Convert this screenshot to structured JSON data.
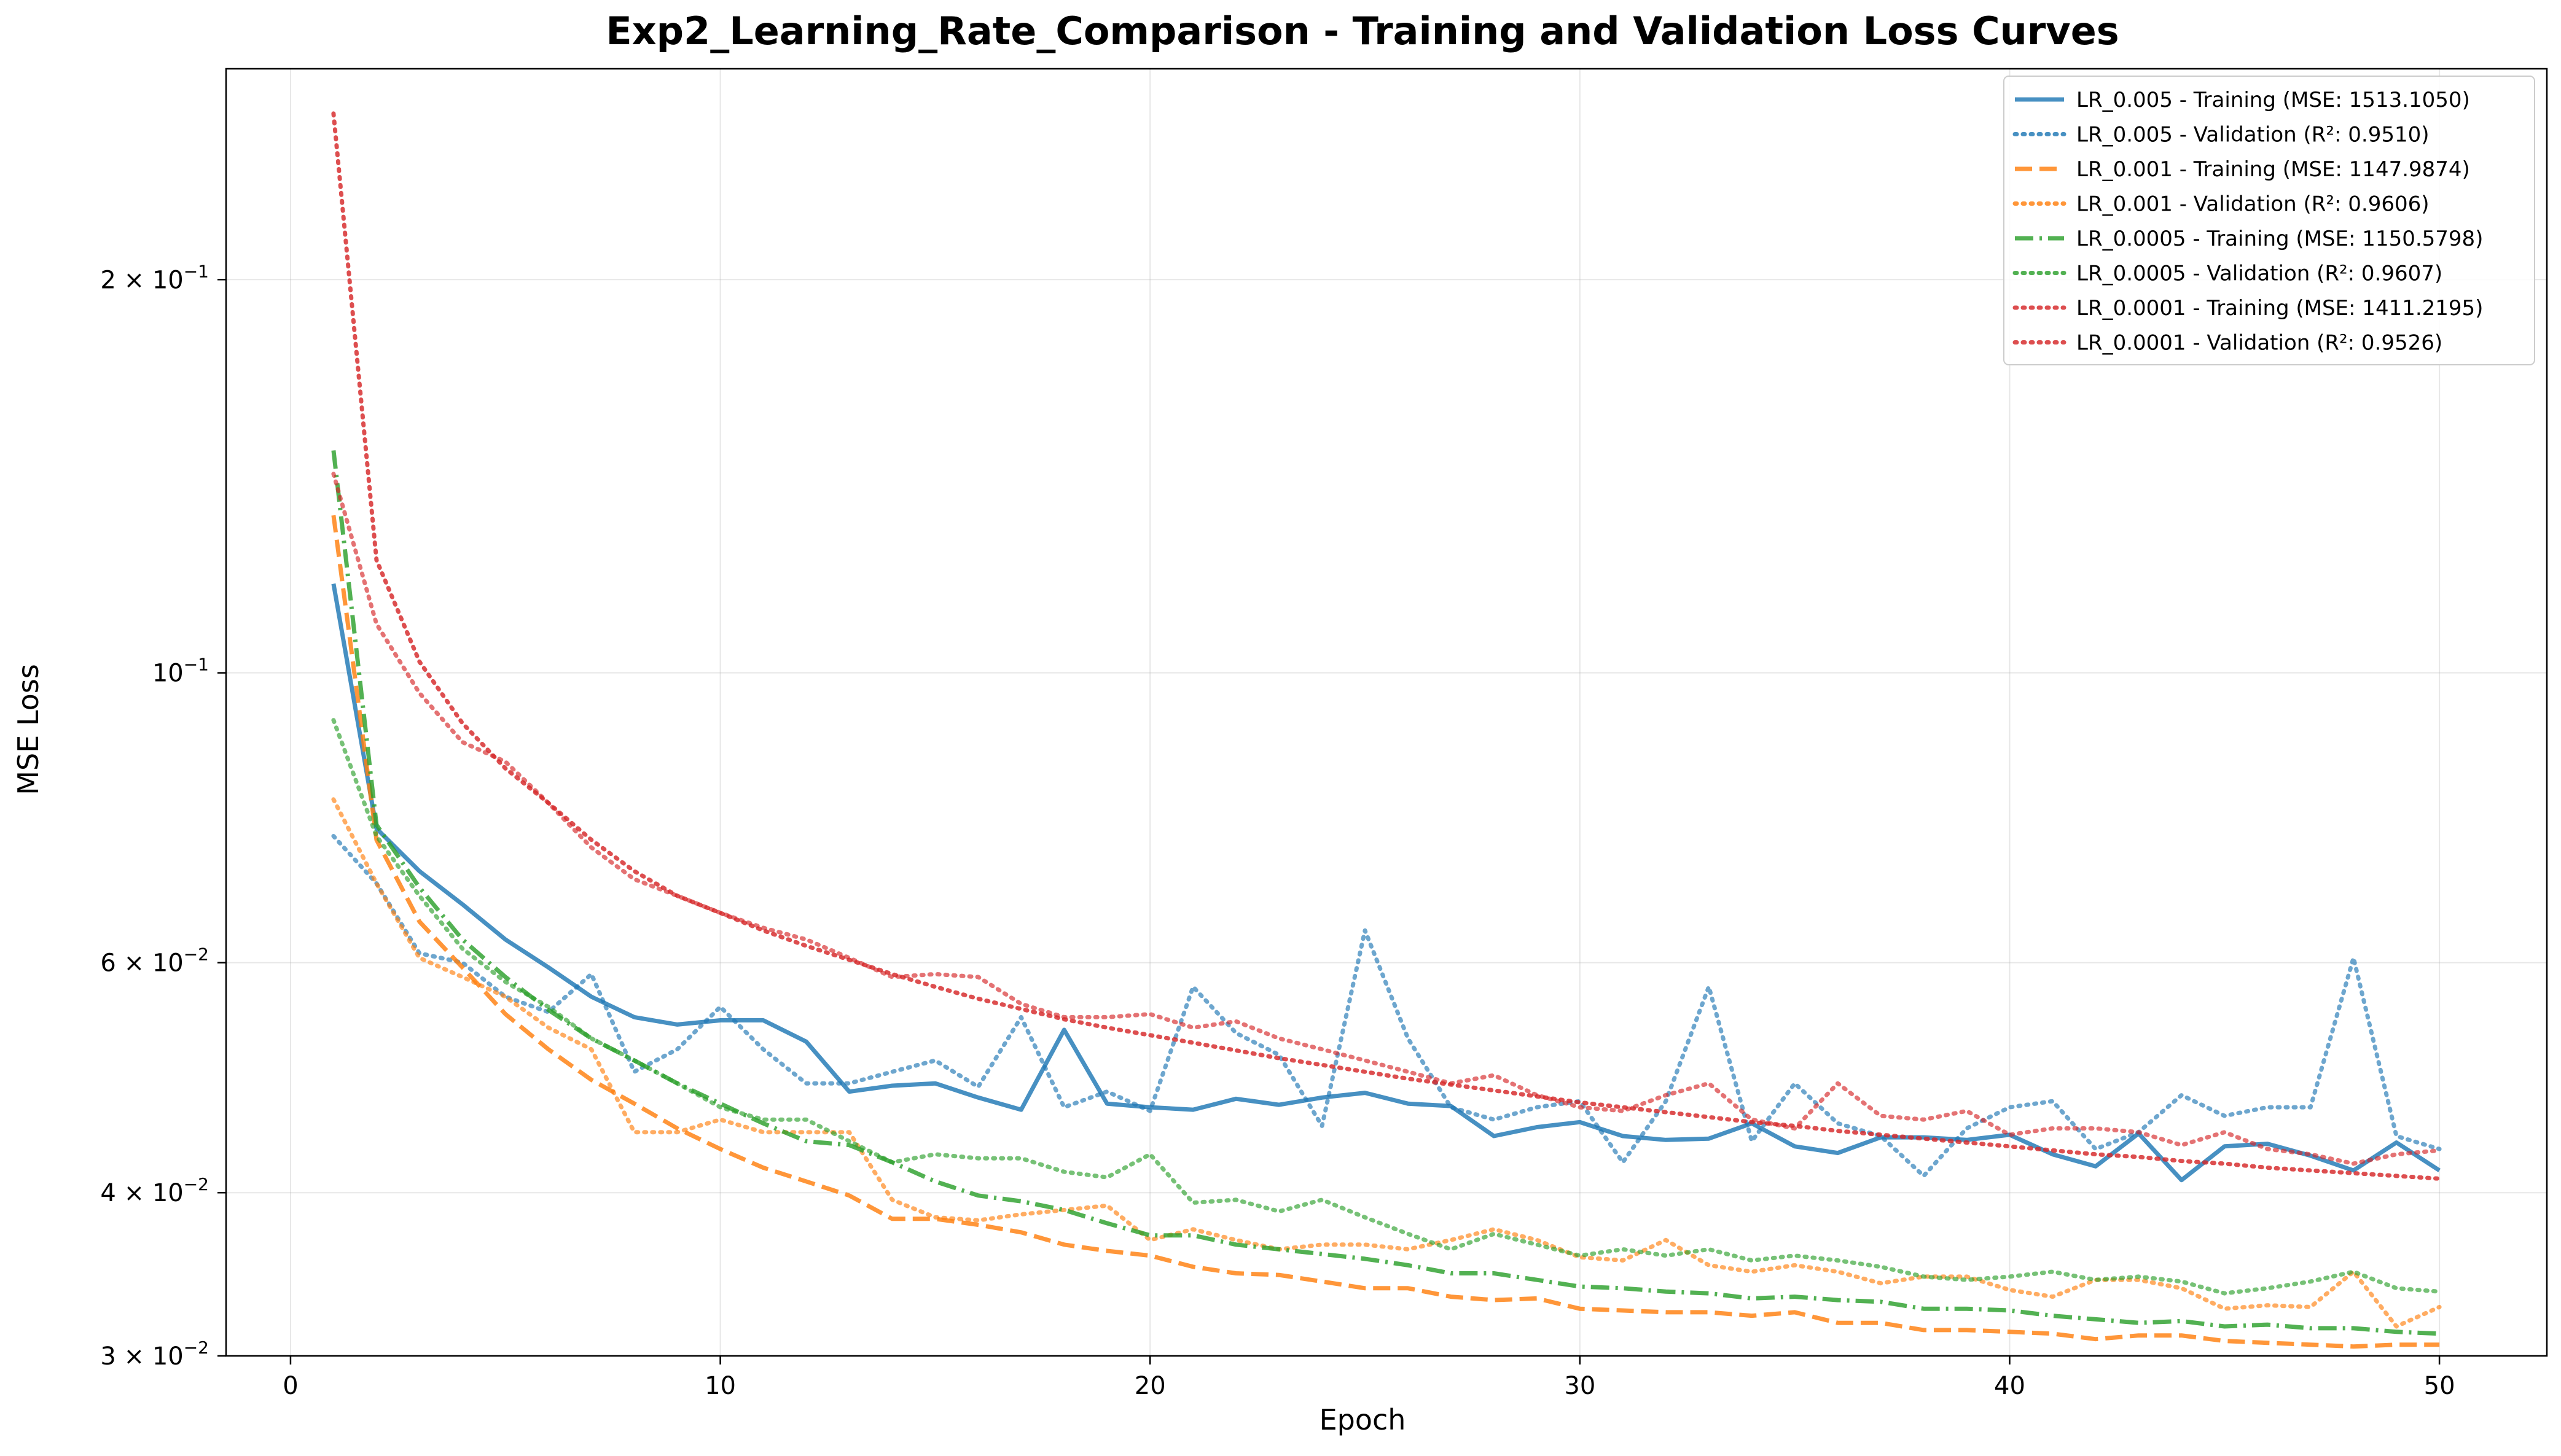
{
  "chart_data": {
    "type": "line",
    "title": "Exp2_Learning_Rate_Comparison - Training and Validation Loss Curves",
    "xlabel": "Epoch",
    "ylabel": "MSE Loss",
    "yscale": "log",
    "xlim": [
      -1.5,
      52.5
    ],
    "ylim": [
      0.03,
      0.29
    ],
    "grid": true,
    "legend_position": "top-right",
    "x_ticks": [
      {
        "value": 0,
        "label": "0"
      },
      {
        "value": 10,
        "label": "10"
      },
      {
        "value": 20,
        "label": "20"
      },
      {
        "value": 30,
        "label": "30"
      },
      {
        "value": 40,
        "label": "40"
      },
      {
        "value": 50,
        "label": "50"
      }
    ],
    "y_ticks": [
      {
        "value": 0.03,
        "mant": "3 × 10",
        "exp": "−2"
      },
      {
        "value": 0.04,
        "mant": "4 × 10",
        "exp": "−2"
      },
      {
        "value": 0.06,
        "mant": "6 × 10",
        "exp": "−2"
      },
      {
        "value": 0.1,
        "mant": "10",
        "exp": "−1"
      },
      {
        "value": 0.2,
        "mant": "2 × 10",
        "exp": "−1"
      }
    ],
    "series": [
      {
        "name": "LR_0.005 - Training (MSE: 1513.1050)",
        "color": "#1f77b4",
        "dash": "solid",
        "values": [
          0.117,
          0.076,
          0.0705,
          0.0665,
          0.0625,
          0.0595,
          0.0565,
          0.0545,
          0.0538,
          0.0542,
          0.0542,
          0.0522,
          0.0478,
          0.0483,
          0.0485,
          0.0473,
          0.0463,
          0.0533,
          0.0468,
          0.0465,
          0.0463,
          0.0472,
          0.0467,
          0.0473,
          0.0477,
          0.0468,
          0.0466,
          0.0442,
          0.0449,
          0.0453,
          0.0442,
          0.0439,
          0.044,
          0.0452,
          0.0434,
          0.0429,
          0.0441,
          0.0441,
          0.0439,
          0.0443,
          0.0428,
          0.0419,
          0.0444,
          0.0409,
          0.0434,
          0.0436,
          0.0427,
          0.0416,
          0.0437,
          0.0416
        ]
      },
      {
        "name": "LR_0.005 - Validation (R²: 0.9510)",
        "color": "#1f77b4",
        "dash": "dotted",
        "values": [
          0.075,
          0.069,
          0.061,
          0.06,
          0.0565,
          0.055,
          0.0588,
          0.0495,
          0.0515,
          0.0555,
          0.0515,
          0.0485,
          0.0485,
          0.0495,
          0.0505,
          0.0482,
          0.0545,
          0.0465,
          0.0478,
          0.0462,
          0.0575,
          0.053,
          0.051,
          0.045,
          0.0635,
          0.0525,
          0.0465,
          0.0455,
          0.0465,
          0.047,
          0.0422,
          0.047,
          0.0575,
          0.0438,
          0.0485,
          0.0452,
          0.0442,
          0.0412,
          0.0448,
          0.0465,
          0.047,
          0.0432,
          0.0445,
          0.0475,
          0.0458,
          0.0465,
          0.0465,
          0.0605,
          0.0442,
          0.0432
        ]
      },
      {
        "name": "LR_0.001 - Training (MSE: 1147.9874)",
        "color": "#ff7f0e",
        "dash": "dashed",
        "values": [
          0.132,
          0.0745,
          0.0645,
          0.0595,
          0.0548,
          0.0515,
          0.0488,
          0.0468,
          0.0448,
          0.0432,
          0.0418,
          0.0408,
          0.0398,
          0.0382,
          0.0382,
          0.0378,
          0.0373,
          0.0365,
          0.0361,
          0.0358,
          0.0351,
          0.0347,
          0.0346,
          0.0342,
          0.0338,
          0.0338,
          0.0333,
          0.0331,
          0.0332,
          0.0326,
          0.0325,
          0.0324,
          0.0324,
          0.0322,
          0.0324,
          0.0318,
          0.0318,
          0.0314,
          0.0314,
          0.0313,
          0.0312,
          0.0309,
          0.0311,
          0.0311,
          0.0308,
          0.0307,
          0.0306,
          0.0305,
          0.0306,
          0.0306
        ]
      },
      {
        "name": "LR_0.001 - Validation (R²: 0.9606)",
        "color": "#ff7f0e",
        "dash": "dotted",
        "values": [
          0.08,
          0.069,
          0.0605,
          0.0585,
          0.0565,
          0.0535,
          0.0515,
          0.0445,
          0.0445,
          0.0455,
          0.0445,
          0.0445,
          0.0445,
          0.0395,
          0.0383,
          0.0381,
          0.0385,
          0.0388,
          0.0391,
          0.0368,
          0.0375,
          0.0368,
          0.0362,
          0.0365,
          0.0365,
          0.0362,
          0.0368,
          0.0375,
          0.0368,
          0.0357,
          0.0355,
          0.0368,
          0.0352,
          0.0348,
          0.0352,
          0.0348,
          0.0341,
          0.0345,
          0.0345,
          0.0337,
          0.0333,
          0.0343,
          0.0343,
          0.0338,
          0.0326,
          0.0328,
          0.0327,
          0.0348,
          0.0316,
          0.0327
        ]
      },
      {
        "name": "LR_0.0005 - Training (MSE: 1150.5798)",
        "color": "#2ca02c",
        "dash": "dashdot",
        "values": [
          0.148,
          0.0765,
          0.0685,
          0.0625,
          0.0585,
          0.0552,
          0.0525,
          0.0505,
          0.0485,
          0.0468,
          0.0452,
          0.0438,
          0.0435,
          0.0422,
          0.0408,
          0.0398,
          0.0394,
          0.0388,
          0.0379,
          0.0371,
          0.0371,
          0.0365,
          0.0362,
          0.0359,
          0.0356,
          0.0352,
          0.0347,
          0.0347,
          0.0343,
          0.0339,
          0.0338,
          0.0336,
          0.0335,
          0.0332,
          0.0333,
          0.0331,
          0.033,
          0.0326,
          0.0326,
          0.0325,
          0.0322,
          0.032,
          0.0318,
          0.0319,
          0.0316,
          0.0317,
          0.0315,
          0.0315,
          0.0313,
          0.0312
        ]
      },
      {
        "name": "LR_0.0005 - Validation (R²: 0.9607)",
        "color": "#2ca02c",
        "dash": "dotted",
        "values": [
          0.092,
          0.075,
          0.0675,
          0.0615,
          0.058,
          0.0555,
          0.0525,
          0.0505,
          0.0485,
          0.0465,
          0.0455,
          0.0455,
          0.0438,
          0.0422,
          0.0428,
          0.0425,
          0.0425,
          0.0415,
          0.0411,
          0.0428,
          0.0393,
          0.0395,
          0.0387,
          0.0395,
          0.0383,
          0.0372,
          0.0362,
          0.0372,
          0.0365,
          0.0358,
          0.0362,
          0.0358,
          0.0362,
          0.0355,
          0.0358,
          0.0355,
          0.0351,
          0.0345,
          0.0343,
          0.0345,
          0.0348,
          0.0343,
          0.0345,
          0.0342,
          0.0335,
          0.0338,
          0.0342,
          0.0348,
          0.0338,
          0.0336
        ]
      },
      {
        "name": "LR_0.0001 - Training (MSE: 1411.2195)",
        "color": "#d62728",
        "dash": "dotted",
        "values": [
          0.268,
          0.122,
          0.102,
          0.0915,
          0.0845,
          0.0795,
          0.0745,
          0.0705,
          0.0675,
          0.0655,
          0.0635,
          0.0618,
          0.0603,
          0.0588,
          0.0575,
          0.0563,
          0.0553,
          0.0543,
          0.0535,
          0.0528,
          0.0521,
          0.0514,
          0.0507,
          0.0501,
          0.0495,
          0.0489,
          0.0484,
          0.0479,
          0.0474,
          0.0469,
          0.0465,
          0.0461,
          0.0457,
          0.0453,
          0.045,
          0.0446,
          0.0443,
          0.044,
          0.0437,
          0.0434,
          0.0431,
          0.0428,
          0.0426,
          0.0423,
          0.0421,
          0.0418,
          0.0416,
          0.0414,
          0.0412,
          0.041
        ]
      },
      {
        "name": "LR_0.0001 - Validation (R²: 0.9526)",
        "color": "#d62728",
        "dash": "dotted",
        "values": [
          0.142,
          0.109,
          0.0965,
          0.0885,
          0.0855,
          0.0795,
          0.0735,
          0.0695,
          0.0675,
          0.0655,
          0.0638,
          0.0625,
          0.0605,
          0.0585,
          0.0588,
          0.0585,
          0.0558,
          0.0545,
          0.0545,
          0.0548,
          0.0535,
          0.0541,
          0.0525,
          0.0515,
          0.0505,
          0.0495,
          0.0485,
          0.0492,
          0.0475,
          0.0465,
          0.0462,
          0.0475,
          0.0485,
          0.0455,
          0.0448,
          0.0485,
          0.0458,
          0.0455,
          0.0462,
          0.0443,
          0.0448,
          0.0448,
          0.0445,
          0.0435,
          0.0445,
          0.0432,
          0.0428,
          0.0421,
          0.0428,
          0.0431
        ]
      }
    ]
  }
}
